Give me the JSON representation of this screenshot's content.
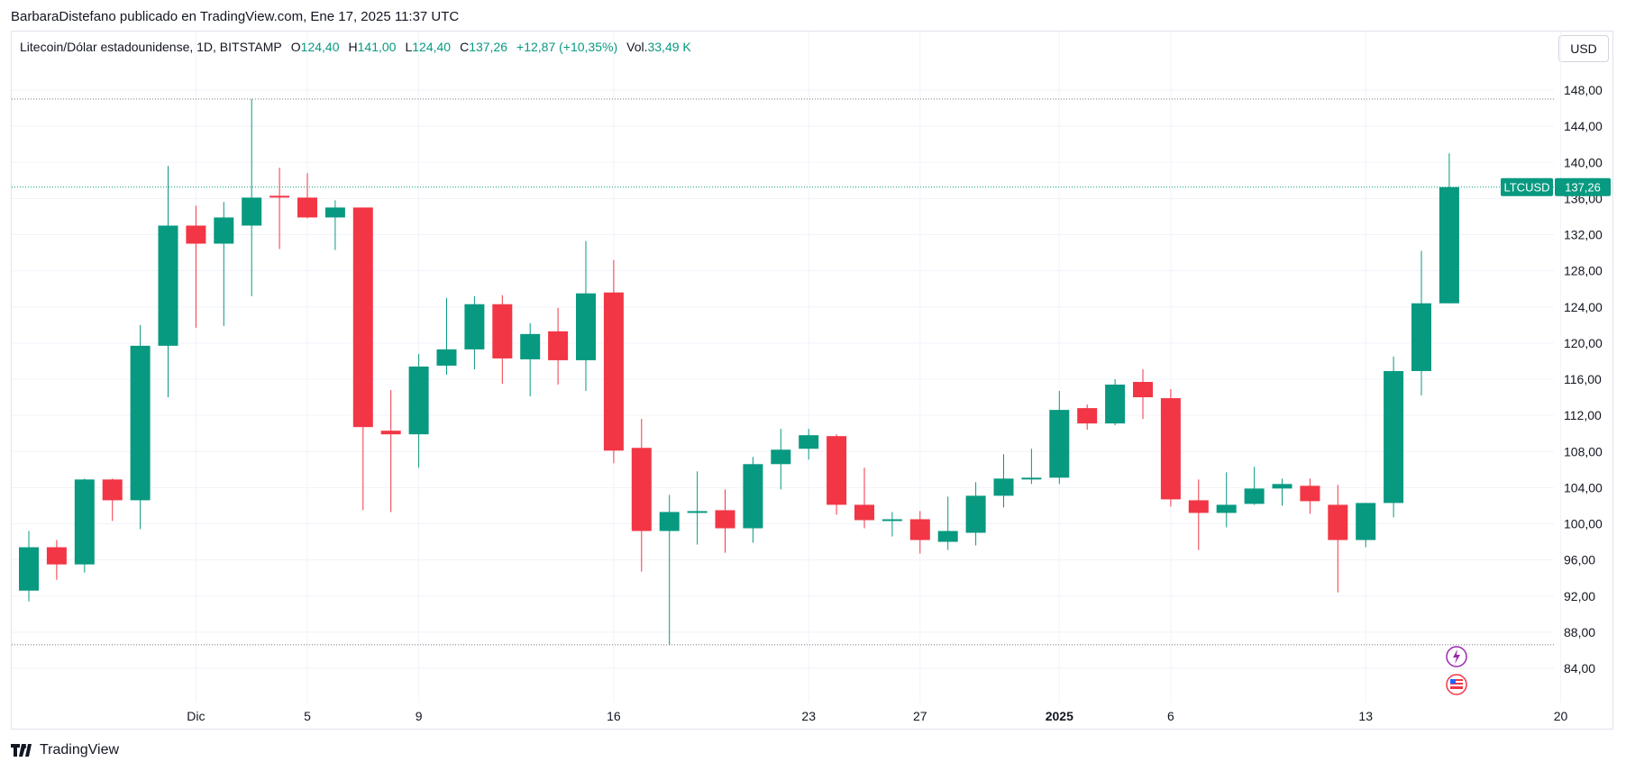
{
  "caption": "BarbaraDistefano publicado en TradingView.com, Ene 17, 2025 11:37 UTC",
  "legend": {
    "symbol": "Litecoin/Dólar estadounidense, 1D, BITSTAMP",
    "o_label": "O",
    "o_value": "124,40",
    "h_label": "H",
    "h_value": "141,00",
    "l_label": "L",
    "l_value": "124,40",
    "c_label": "C",
    "c_value": "137,26",
    "change": "+12,87 (+10,35%)",
    "vol_label": "Vol.",
    "vol_value": "33,49 K"
  },
  "currency_button": "USD",
  "footer": {
    "brand": "TradingView"
  },
  "colors": {
    "up": "#089981",
    "down": "#f23645",
    "grid": "#f0f3fa",
    "axis_text": "#131722"
  },
  "chart_data": {
    "type": "candlestick",
    "ylim": [
      80,
      152
    ],
    "y_ticks": [
      "148,00",
      "144,00",
      "140,00",
      "136,00",
      "132,00",
      "128,00",
      "124,00",
      "120,00",
      "116,00",
      "112,00",
      "108,00",
      "104,00",
      "100,00",
      "96,00",
      "92,00",
      "88,00",
      "84,00"
    ],
    "x_ticks": [
      "Dic",
      "5",
      "9",
      "16",
      "23",
      "27",
      "2025",
      "6",
      "13",
      "20"
    ],
    "high_line": 147.0,
    "low_line": 86.6,
    "price_label": {
      "name": "LTCUSD",
      "value": "137,26",
      "price": 137.26
    },
    "candles": [
      {
        "o": 92.6,
        "h": 99.2,
        "l": 91.4,
        "c": 97.4
      },
      {
        "o": 97.4,
        "h": 98.2,
        "l": 93.8,
        "c": 95.5
      },
      {
        "o": 95.5,
        "h": 105.0,
        "l": 94.6,
        "c": 104.9
      },
      {
        "o": 104.9,
        "h": 105.0,
        "l": 100.3,
        "c": 102.6
      },
      {
        "o": 102.6,
        "h": 122.0,
        "l": 99.4,
        "c": 119.7
      },
      {
        "o": 119.7,
        "h": 139.6,
        "l": 114.0,
        "c": 133.0
      },
      {
        "o": 133.0,
        "h": 135.2,
        "l": 121.7,
        "c": 131.0
      },
      {
        "o": 131.0,
        "h": 135.6,
        "l": 121.9,
        "c": 133.9
      },
      {
        "o": 133.0,
        "h": 147.0,
        "l": 125.2,
        "c": 136.1
      },
      {
        "o": 136.3,
        "h": 139.4,
        "l": 130.4,
        "c": 136.2
      },
      {
        "o": 136.1,
        "h": 138.8,
        "l": 133.8,
        "c": 133.9
      },
      {
        "o": 133.9,
        "h": 135.8,
        "l": 130.3,
        "c": 135.0
      },
      {
        "o": 135.0,
        "h": 135.0,
        "l": 101.5,
        "c": 110.7
      },
      {
        "o": 110.3,
        "h": 114.8,
        "l": 101.3,
        "c": 109.9
      },
      {
        "o": 109.9,
        "h": 118.8,
        "l": 106.2,
        "c": 117.4
      },
      {
        "o": 117.5,
        "h": 125.0,
        "l": 116.5,
        "c": 119.3
      },
      {
        "o": 119.3,
        "h": 125.2,
        "l": 117.1,
        "c": 124.3
      },
      {
        "o": 124.3,
        "h": 125.3,
        "l": 115.5,
        "c": 118.3
      },
      {
        "o": 118.2,
        "h": 122.2,
        "l": 114.1,
        "c": 121.0
      },
      {
        "o": 121.3,
        "h": 123.9,
        "l": 115.4,
        "c": 118.1
      },
      {
        "o": 118.1,
        "h": 131.3,
        "l": 114.7,
        "c": 125.5
      },
      {
        "o": 125.6,
        "h": 129.2,
        "l": 106.7,
        "c": 108.1
      },
      {
        "o": 108.4,
        "h": 111.6,
        "l": 94.7,
        "c": 99.2
      },
      {
        "o": 99.2,
        "h": 103.2,
        "l": 86.6,
        "c": 101.3
      },
      {
        "o": 101.3,
        "h": 105.8,
        "l": 97.7,
        "c": 101.4
      },
      {
        "o": 101.5,
        "h": 103.8,
        "l": 96.8,
        "c": 99.5
      },
      {
        "o": 99.5,
        "h": 107.4,
        "l": 97.9,
        "c": 106.6
      },
      {
        "o": 106.6,
        "h": 110.5,
        "l": 103.8,
        "c": 108.2
      },
      {
        "o": 108.3,
        "h": 110.5,
        "l": 107.1,
        "c": 109.8
      },
      {
        "o": 109.7,
        "h": 109.9,
        "l": 101.0,
        "c": 102.1
      },
      {
        "o": 102.1,
        "h": 106.2,
        "l": 99.5,
        "c": 100.4
      },
      {
        "o": 100.4,
        "h": 101.3,
        "l": 98.6,
        "c": 100.5
      },
      {
        "o": 100.5,
        "h": 101.4,
        "l": 96.7,
        "c": 98.2
      },
      {
        "o": 98.0,
        "h": 103.0,
        "l": 97.1,
        "c": 99.2
      },
      {
        "o": 99.0,
        "h": 104.6,
        "l": 97.6,
        "c": 103.1
      },
      {
        "o": 103.1,
        "h": 107.7,
        "l": 101.8,
        "c": 105.0
      },
      {
        "o": 105.0,
        "h": 108.3,
        "l": 104.4,
        "c": 105.1
      },
      {
        "o": 105.1,
        "h": 114.7,
        "l": 104.4,
        "c": 112.6
      },
      {
        "o": 112.8,
        "h": 113.2,
        "l": 110.4,
        "c": 111.1
      },
      {
        "o": 111.1,
        "h": 116.0,
        "l": 110.9,
        "c": 115.4
      },
      {
        "o": 115.7,
        "h": 117.1,
        "l": 111.6,
        "c": 114.0
      },
      {
        "o": 113.9,
        "h": 114.9,
        "l": 101.9,
        "c": 102.7
      },
      {
        "o": 102.6,
        "h": 104.9,
        "l": 97.1,
        "c": 101.2
      },
      {
        "o": 101.2,
        "h": 105.7,
        "l": 99.6,
        "c": 102.1
      },
      {
        "o": 102.2,
        "h": 106.3,
        "l": 102.1,
        "c": 103.9
      },
      {
        "o": 103.9,
        "h": 105.0,
        "l": 102.0,
        "c": 104.4
      },
      {
        "o": 104.2,
        "h": 105.0,
        "l": 101.1,
        "c": 102.5
      },
      {
        "o": 102.1,
        "h": 104.3,
        "l": 92.4,
        "c": 98.2
      },
      {
        "o": 98.2,
        "h": 102.3,
        "l": 97.4,
        "c": 102.3
      },
      {
        "o": 102.3,
        "h": 118.5,
        "l": 100.7,
        "c": 116.9
      },
      {
        "o": 116.9,
        "h": 130.2,
        "l": 114.2,
        "c": 124.4
      },
      {
        "o": 124.4,
        "h": 141.0,
        "l": 124.4,
        "c": 137.26
      }
    ]
  }
}
